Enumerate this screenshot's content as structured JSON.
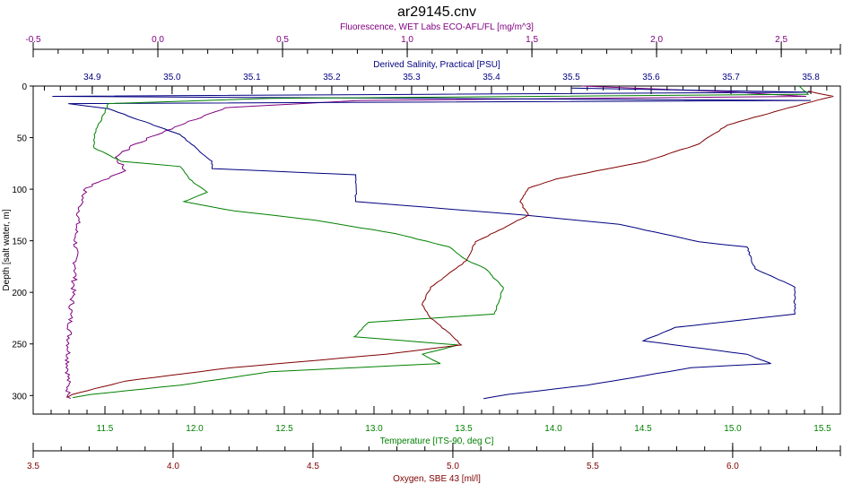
{
  "chart_data": {
    "type": "line",
    "title": "ar29145.cnv",
    "y_axis": {
      "label": "Depth [salt water, m]",
      "range": [
        0,
        318
      ],
      "inverted": true,
      "ticks": [
        0,
        50,
        100,
        150,
        200,
        250,
        300
      ]
    },
    "x_axes": [
      {
        "id": "fluorescence",
        "label": "Fluorescence, WET Labs ECO-AFL/FL [mg/m^3]",
        "position": "top-outer",
        "range": [
          -0.5,
          2.737
        ],
        "ticks": [
          -0.5,
          0.0,
          0.5,
          1.0,
          1.5,
          2.0,
          2.5
        ],
        "tick_labels": [
          "-0.5",
          "0.0",
          "0.5",
          "1.0",
          "1.5",
          "2.0",
          "2.5"
        ],
        "minor": 0.1,
        "color": "#800080"
      },
      {
        "id": "salinity",
        "label": "Derived Salinity, Practical [PSU]",
        "position": "top-inner",
        "range": [
          34.826,
          35.837
        ],
        "ticks": [
          34.9,
          35.0,
          35.1,
          35.2,
          35.3,
          35.4,
          35.5,
          35.6,
          35.7,
          35.8
        ],
        "tick_labels": [
          "34.9",
          "35.0",
          "35.1",
          "35.2",
          "35.3",
          "35.4",
          "35.5",
          "35.6",
          "35.7",
          "35.8"
        ],
        "minor": 0.02,
        "color": "#000080"
      },
      {
        "id": "temperature",
        "label": "Temperature [ITS-90, deg C]",
        "position": "bottom-inner",
        "range": [
          11.1,
          15.6
        ],
        "ticks": [
          11.5,
          12.0,
          12.5,
          13.0,
          13.5,
          14.0,
          14.5,
          15.0,
          15.5
        ],
        "tick_labels": [
          "11.5",
          "12.0",
          "12.5",
          "13.0",
          "13.5",
          "14.0",
          "14.5",
          "15.0",
          "15.5"
        ],
        "minor": 0.1,
        "color": "#008000"
      },
      {
        "id": "oxygen",
        "label": "Oxygen, SBE 43 [ml/l]",
        "position": "bottom-outer",
        "range": [
          3.5,
          6.385
        ],
        "ticks": [
          3.5,
          4.0,
          4.5,
          5.0,
          5.5,
          6.0
        ],
        "tick_labels": [
          "3.5",
          "4.0",
          "4.5",
          "5.0",
          "5.5",
          "6.0"
        ],
        "minor": 0.1,
        "color": "#800000"
      }
    ],
    "series": [
      {
        "name": "Fluorescence",
        "axis": "fluorescence",
        "color": "#800080",
        "depth": [
          0,
          6,
          10,
          14,
          21,
          38,
          56,
          69,
          82,
          99,
          116,
          143,
          177,
          221,
          264,
          299,
          303
        ],
        "values": [
          1.7,
          2.32,
          2.6,
          0.81,
          0.27,
          0.09,
          -0.09,
          -0.17,
          -0.13,
          -0.29,
          -0.31,
          -0.33,
          -0.33,
          -0.35,
          -0.36,
          -0.36,
          -0.35
        ]
      },
      {
        "name": "Salinity",
        "axis": "salinity",
        "color": "#000080",
        "depth": [
          2,
          6,
          10,
          14,
          17,
          22,
          47,
          73,
          80,
          86,
          112,
          125,
          134,
          151,
          156,
          177,
          195,
          221,
          234,
          247,
          260,
          269,
          273,
          290,
          299,
          303
        ],
        "values": [
          35.5,
          35.8,
          34.85,
          35.8,
          34.87,
          34.92,
          35.01,
          35.05,
          35.05,
          35.23,
          35.23,
          35.44,
          35.56,
          35.66,
          35.72,
          35.73,
          35.78,
          35.78,
          35.63,
          35.59,
          35.72,
          35.75,
          35.65,
          35.52,
          35.42,
          35.39
        ]
      },
      {
        "name": "Temperature",
        "axis": "temperature",
        "color": "#008000",
        "depth": [
          0,
          8,
          12,
          17,
          47,
          60,
          73,
          78,
          90,
          103,
          112,
          121,
          130,
          143,
          156,
          169,
          177,
          195,
          221,
          229,
          243,
          251,
          260,
          269,
          277,
          290,
          299,
          302
        ],
        "values": [
          15.37,
          15.42,
          12.42,
          11.52,
          11.44,
          11.44,
          11.59,
          11.92,
          11.97,
          12.07,
          11.94,
          12.22,
          12.67,
          13.12,
          13.42,
          13.52,
          13.62,
          13.72,
          13.67,
          12.97,
          12.89,
          13.47,
          13.27,
          13.37,
          12.42,
          11.92,
          11.42,
          11.32
        ]
      },
      {
        "name": "Oxygen",
        "axis": "oxygen",
        "color": "#800000",
        "depth": [
          5,
          10,
          21,
          38,
          56,
          73,
          90,
          99,
          112,
          125,
          138,
          151,
          169,
          195,
          212,
          225,
          238,
          251,
          260,
          273,
          286,
          299,
          302
        ],
        "values": [
          6.27,
          6.36,
          6.2,
          5.98,
          5.88,
          5.69,
          5.37,
          5.27,
          5.24,
          5.27,
          5.18,
          5.08,
          5.05,
          4.92,
          4.89,
          4.92,
          4.98,
          5.03,
          4.76,
          4.21,
          3.83,
          3.64,
          3.62
        ]
      }
    ]
  }
}
